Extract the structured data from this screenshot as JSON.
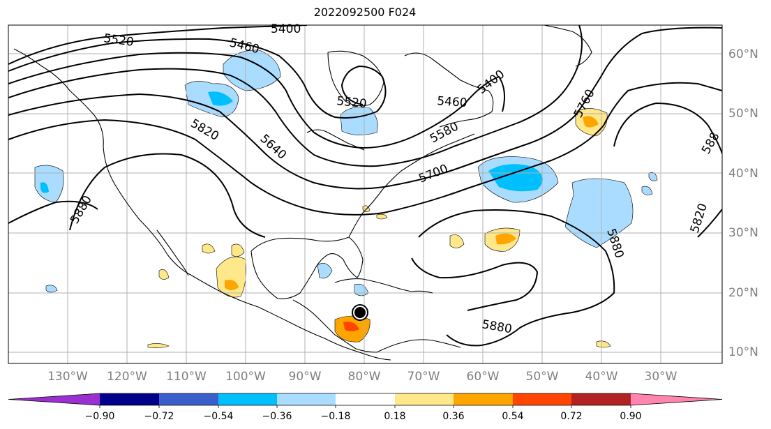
{
  "title": "2022092500 F024",
  "map": {
    "lon_labels": [
      "130°W",
      "120°W",
      "110°W",
      "100°W",
      "90°W",
      "80°W",
      "70°W",
      "60°W",
      "50°W",
      "40°W",
      "30°W"
    ],
    "lat_labels": [
      "60°N",
      "50°N",
      "40°N",
      "30°N",
      "20°N",
      "10°N"
    ],
    "contour_labels": [
      "5400",
      "5520",
      "5460",
      "5520",
      "5460",
      "5400",
      "5820",
      "5640",
      "5580",
      "5700",
      "5760",
      "5880",
      "5880",
      "5820",
      "5880",
      "588"
    ],
    "colors": {
      "land_line": "#000000",
      "grid": "#b0b0b0",
      "contour": "#000000"
    }
  },
  "colorbar": {
    "ticks": [
      "−0.90",
      "−0.72",
      "−0.54",
      "−0.36",
      "−0.18",
      "0.18",
      "0.36",
      "0.54",
      "0.72",
      "0.90"
    ],
    "colors": [
      "#9b30d0",
      "#00008b",
      "#3a5fcd",
      "#00bfff",
      "#aadcff",
      "#ffffff",
      "#ffe88a",
      "#ffa500",
      "#ff4500",
      "#b22222",
      "#ff85b0"
    ]
  }
}
